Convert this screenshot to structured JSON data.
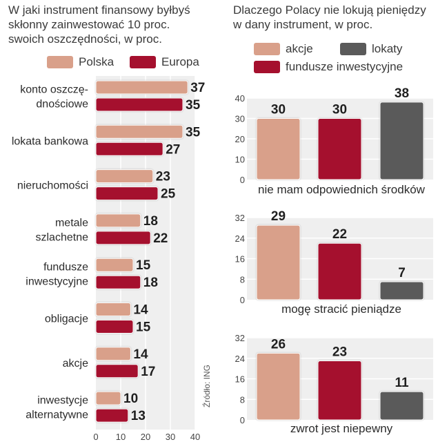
{
  "left": {
    "title_lines": [
      "W jaki instrument finansowy byłbyś",
      "skłonny zainwestować 10 proc.",
      "swoich oszczędności, w proc."
    ],
    "legend": [
      {
        "label": "Polska",
        "color": "#d9a08a"
      },
      {
        "label": "Europa",
        "color": "#a5102e"
      }
    ]
  },
  "right": {
    "title_lines": [
      "Dlaczego Polacy nie lokują pieniędzy",
      "w dany instrument, w proc."
    ],
    "legend": [
      {
        "label": "akcje",
        "color": "#d9a08a"
      },
      {
        "label": "lokaty",
        "color": "#5a5a5a"
      },
      {
        "label": "fundusze inwestycyjne",
        "color": "#a5102e"
      }
    ]
  },
  "source": "Źródło: ING",
  "chart_data": [
    {
      "type": "bar",
      "orientation": "horizontal",
      "title": "W jaki instrument finansowy byłbyś skłonny zainwestować 10 proc. swoich oszczędności, w proc.",
      "categories": [
        [
          "konto oszczę-",
          "dnościowe"
        ],
        [
          "lokata bankowa"
        ],
        [
          "nieruchomości"
        ],
        [
          "metale",
          "szlachetne"
        ],
        [
          "fundusze",
          "inwestycyjne"
        ],
        [
          "obligacje"
        ],
        [
          "akcje"
        ],
        [
          "inwestycje",
          "alternatywne"
        ]
      ],
      "series": [
        {
          "name": "Polska",
          "color": "#d9a08a",
          "values": [
            37,
            35,
            23,
            18,
            15,
            14,
            14,
            10
          ]
        },
        {
          "name": "Europa",
          "color": "#a5102e",
          "values": [
            35,
            27,
            25,
            22,
            18,
            15,
            17,
            13
          ]
        }
      ],
      "xlim": [
        0,
        40
      ],
      "xticks": [
        0,
        10,
        20,
        30,
        40
      ]
    },
    {
      "type": "bar",
      "title": "nie mam odpowiednich środków",
      "categories": [
        "akcje",
        "fundusze inwestycyjne",
        "lokaty"
      ],
      "values": [
        30,
        30,
        38
      ],
      "colors": [
        "#d9a08a",
        "#a5102e",
        "#5a5a5a"
      ],
      "ylim": [
        0,
        40
      ],
      "yticks": [
        0,
        10,
        20,
        30,
        40
      ]
    },
    {
      "type": "bar",
      "title": "mogę stracić pieniądze",
      "categories": [
        "akcje",
        "fundusze inwestycyjne",
        "lokaty"
      ],
      "values": [
        29,
        22,
        7
      ],
      "colors": [
        "#d9a08a",
        "#a5102e",
        "#5a5a5a"
      ],
      "ylim": [
        0,
        32
      ],
      "yticks": [
        0,
        8,
        16,
        24,
        32
      ]
    },
    {
      "type": "bar",
      "title": "zwrot jest niepewny",
      "categories": [
        "akcje",
        "fundusze inwestycyjne",
        "lokaty"
      ],
      "values": [
        26,
        23,
        11
      ],
      "colors": [
        "#d9a08a",
        "#a5102e",
        "#5a5a5a"
      ],
      "ylim": [
        0,
        32
      ],
      "yticks": [
        0,
        8,
        16,
        24,
        32
      ]
    }
  ]
}
